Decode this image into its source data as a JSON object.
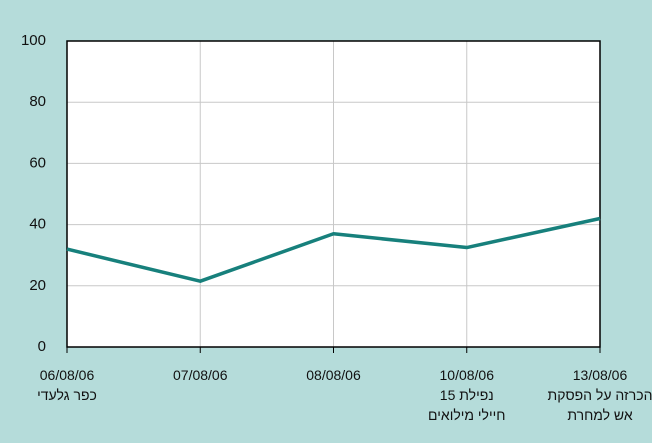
{
  "chart_data": {
    "type": "line",
    "categories": [
      "06/08/06\nכפר גלעדי",
      "07/08/06",
      "08/08/06",
      "10/08/06\nנפילת 15\nחיילי מילואים",
      "13/08/06\nהכרזה על הפסקת\nאש למחרת"
    ],
    "values": [
      32,
      21.5,
      37,
      32.5,
      42
    ],
    "color": "#17807c",
    "ylim": [
      0,
      100
    ],
    "yticks": [
      0,
      20,
      40,
      60,
      80,
      100
    ],
    "grid": true
  }
}
